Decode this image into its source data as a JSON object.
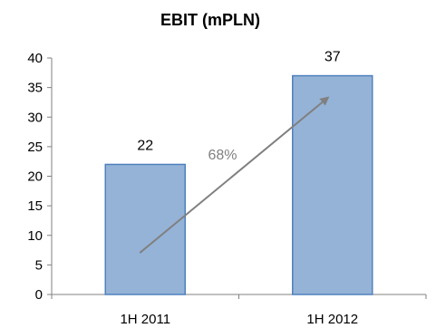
{
  "chart_data": {
    "type": "bar",
    "title": "EBIT (mPLN)",
    "categories": [
      "1H 2011",
      "1H 2012"
    ],
    "values": [
      22,
      37
    ],
    "data_labels": [
      "22",
      "37"
    ],
    "ylim": [
      0,
      40
    ],
    "yticks": [
      0,
      5,
      10,
      15,
      20,
      25,
      30,
      35,
      40
    ],
    "xlabel": "",
    "ylabel": "",
    "grid": false,
    "legend": "none",
    "bar_color": "#95b3d7",
    "bar_edge_color": "#4f81bd",
    "annotation": {
      "text": "68%",
      "kind": "growth-arrow",
      "from_category": "1H 2011",
      "to_category": "1H 2012",
      "color": "#808080"
    }
  }
}
